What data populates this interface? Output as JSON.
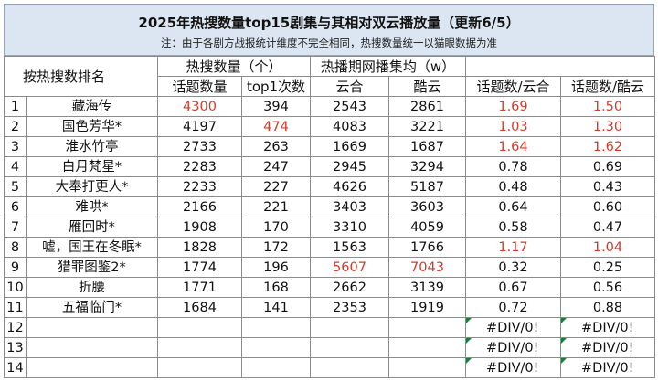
{
  "title": "2025年热搜数量top15剧集与其相对双云播放量（更新6/5）",
  "note": "注：由于各剧方战报统计维度不完全相同，热搜数量统一以猫眼数据为准",
  "headers": {
    "rank": "按热搜数排名",
    "hot_search_group": "热搜数量（个）",
    "play_group": "热播期网播集均（w）",
    "topic_count": "话题数量",
    "top1_count": "top1次数",
    "yunhe": "云合",
    "kuyun": "酷云",
    "ratio_yunhe": "话题数/云合",
    "ratio_kuyun": "话题数/酷云"
  },
  "rows": [
    {
      "no": "1",
      "name": "藏海传",
      "topics": "4300",
      "top1": "394",
      "yunhe": "2543",
      "kuyun": "2861",
      "r1": "1.69",
      "r2": "1.50",
      "red": [
        "topics",
        "r1",
        "r2"
      ]
    },
    {
      "no": "2",
      "name": "国色芳华*",
      "topics": "4197",
      "top1": "474",
      "yunhe": "4083",
      "kuyun": "3221",
      "r1": "1.03",
      "r2": "1.30",
      "red": [
        "top1",
        "r1",
        "r2"
      ]
    },
    {
      "no": "3",
      "name": "淮水竹亭",
      "topics": "2733",
      "top1": "263",
      "yunhe": "1669",
      "kuyun": "1687",
      "r1": "1.64",
      "r2": "1.62",
      "red": [
        "r1",
        "r2"
      ]
    },
    {
      "no": "4",
      "name": "白月梵星*",
      "topics": "2283",
      "top1": "247",
      "yunhe": "2945",
      "kuyun": "3294",
      "r1": "0.78",
      "r2": "0.69",
      "red": []
    },
    {
      "no": "5",
      "name": "大奉打更人*",
      "topics": "2233",
      "top1": "227",
      "yunhe": "4626",
      "kuyun": "5187",
      "r1": "0.48",
      "r2": "0.43",
      "red": []
    },
    {
      "no": "6",
      "name": "难哄*",
      "topics": "2166",
      "top1": "221",
      "yunhe": "3403",
      "kuyun": "3603",
      "r1": "0.64",
      "r2": "0.60",
      "red": []
    },
    {
      "no": "7",
      "name": "雁回时*",
      "topics": "1908",
      "top1": "170",
      "yunhe": "3310",
      "kuyun": "4059",
      "r1": "0.58",
      "r2": "0.47",
      "red": []
    },
    {
      "no": "8",
      "name": "嘘，国王在冬眠*",
      "topics": "1828",
      "top1": "172",
      "yunhe": "1563",
      "kuyun": "1766",
      "r1": "1.17",
      "r2": "1.04",
      "red": [
        "r1",
        "r2"
      ]
    },
    {
      "no": "9",
      "name": "猎罪图鉴2*",
      "topics": "1774",
      "top1": "196",
      "yunhe": "5607",
      "kuyun": "7043",
      "r1": "0.32",
      "r2": "0.25",
      "red": [
        "yunhe",
        "kuyun"
      ]
    },
    {
      "no": "10",
      "name": "折腰",
      "topics": "1771",
      "top1": "168",
      "yunhe": "2662",
      "kuyun": "3139",
      "r1": "0.67",
      "r2": "0.56",
      "red": []
    },
    {
      "no": "11",
      "name": "五福临门*",
      "topics": "1684",
      "top1": "141",
      "yunhe": "2353",
      "kuyun": "1919",
      "r1": "0.72",
      "r2": "0.88",
      "red": []
    },
    {
      "no": "12",
      "name": "",
      "topics": "",
      "top1": "",
      "yunhe": "",
      "kuyun": "",
      "r1": "#DIV/0!",
      "r2": "#DIV/0!",
      "red": [],
      "err": true
    },
    {
      "no": "13",
      "name": "",
      "topics": "",
      "top1": "",
      "yunhe": "",
      "kuyun": "",
      "r1": "#DIV/0!",
      "r2": "#DIV/0!",
      "red": [],
      "err": true
    },
    {
      "no": "14",
      "name": "",
      "topics": "",
      "top1": "",
      "yunhe": "",
      "kuyun": "",
      "r1": "#DIV/0!",
      "r2": "#DIV/0!",
      "red": [],
      "err": true
    }
  ]
}
